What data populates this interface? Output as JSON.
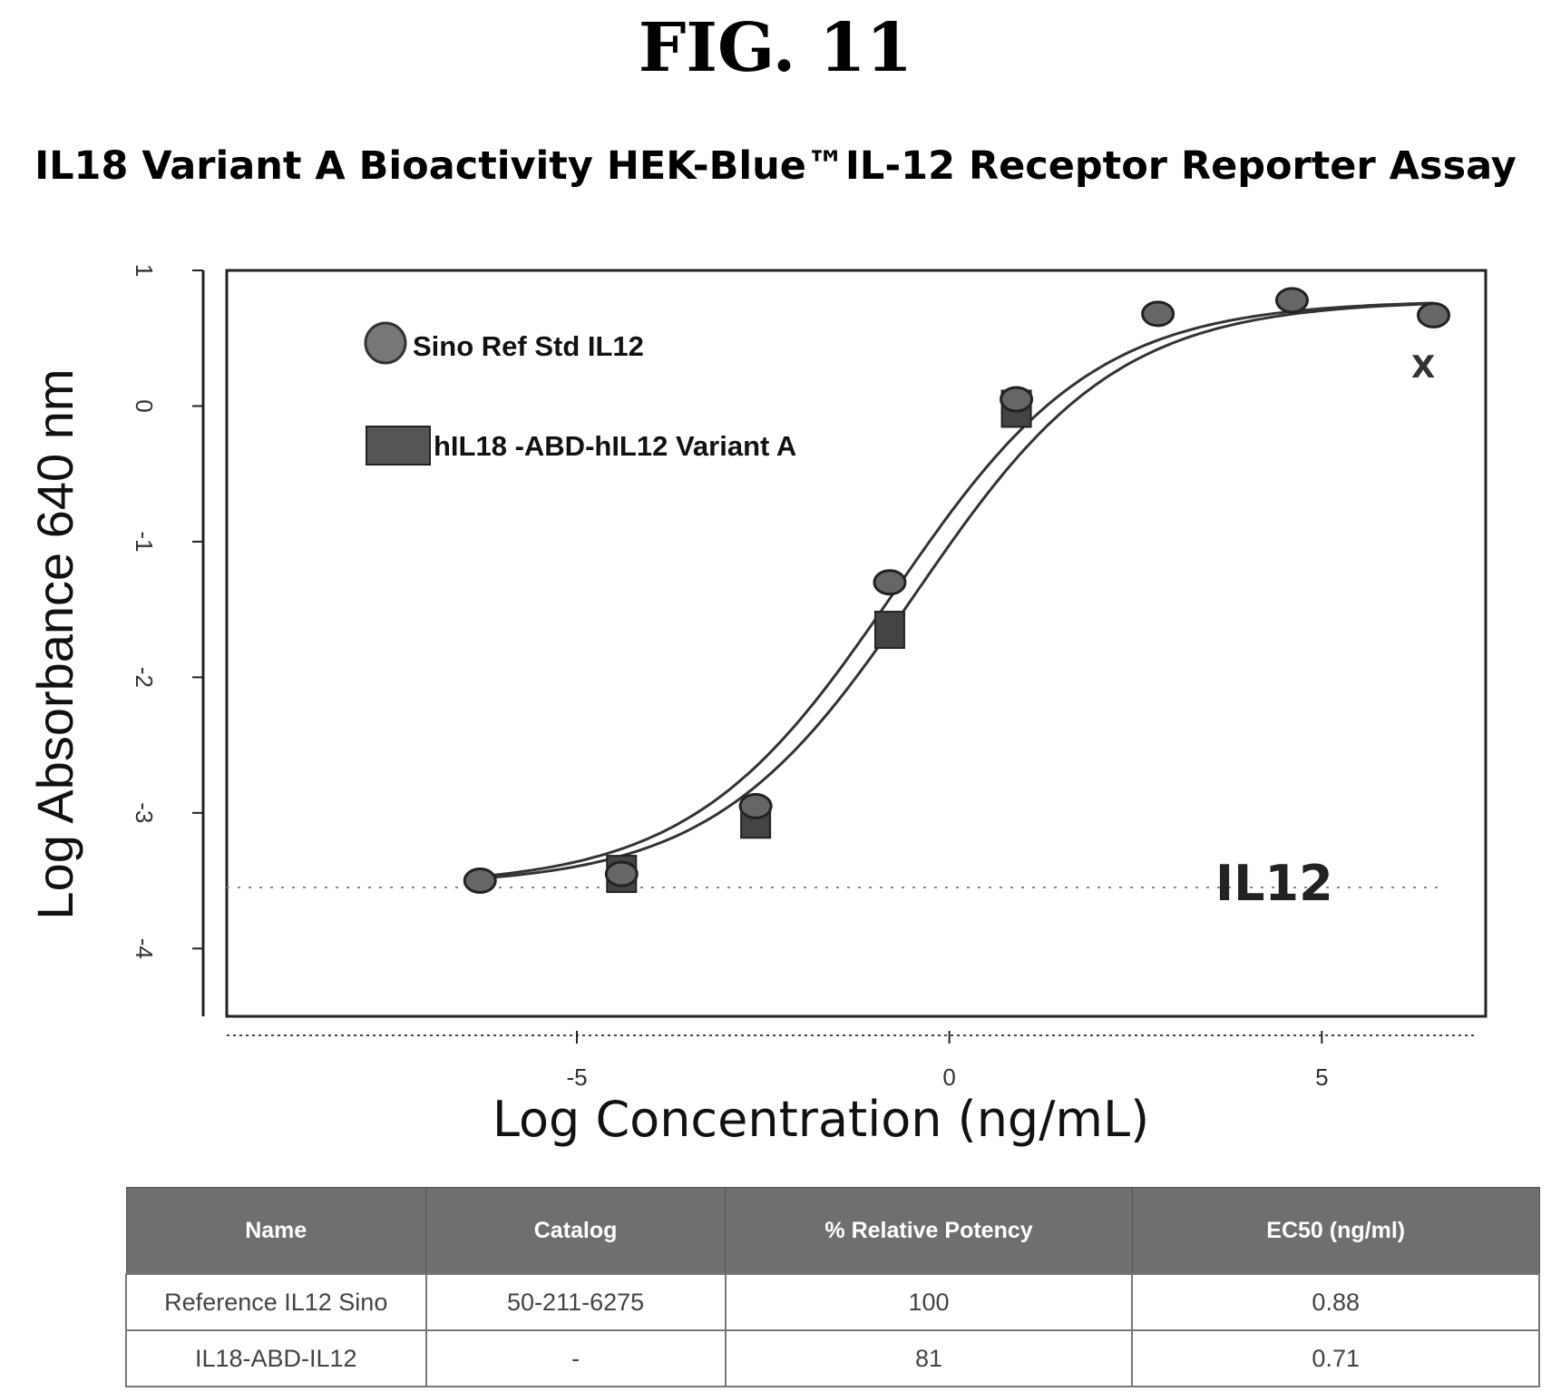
{
  "figure_label": "FIG. 11",
  "chart_data": {
    "type": "scatter",
    "title": "IL18 Variant A  Bioactivity HEK-Blue™IL-12 Receptor Reporter Assay",
    "xlabel": "Log Concentration (ng/mL)",
    "ylabel": "Log Absorbance 640 nm",
    "xlim": [
      -9.7,
      7.2
    ],
    "ylim": [
      -4.5,
      1.0
    ],
    "x_ticks": [
      -5,
      0,
      5
    ],
    "y_ticks": [
      1,
      0,
      -1,
      -2,
      -3,
      -4
    ],
    "grid": false,
    "legend_position": "top-left",
    "annotation": "IL12",
    "excluded_marker": "X",
    "dotted_baseline_y": -3.55,
    "series": [
      {
        "name": "Sino Ref Std IL12",
        "marker": "circle",
        "x": [
          -6.3,
          -4.4,
          -2.6,
          -0.8,
          0.9,
          2.8,
          4.6,
          6.5
        ],
        "y": [
          -3.5,
          -3.45,
          -2.95,
          -1.3,
          0.05,
          0.68,
          0.78,
          0.67
        ]
      },
      {
        "name": "hIL18 -ABD-hIL12 Variant A",
        "marker": "square",
        "x": [
          -4.4,
          -2.6,
          -0.8,
          0.9
        ],
        "y": [
          -3.45,
          -3.05,
          -1.65,
          -0.02
        ]
      }
    ]
  },
  "table": {
    "headers": [
      "Name",
      "Catalog",
      "% Relative Potency",
      "EC50 (ng/ml)"
    ],
    "rows": [
      [
        "Reference IL12 Sino",
        "50-211-6275",
        "100",
        "0.88"
      ],
      [
        "IL18-ABD-IL12",
        "-",
        "81",
        "0.71"
      ]
    ]
  }
}
